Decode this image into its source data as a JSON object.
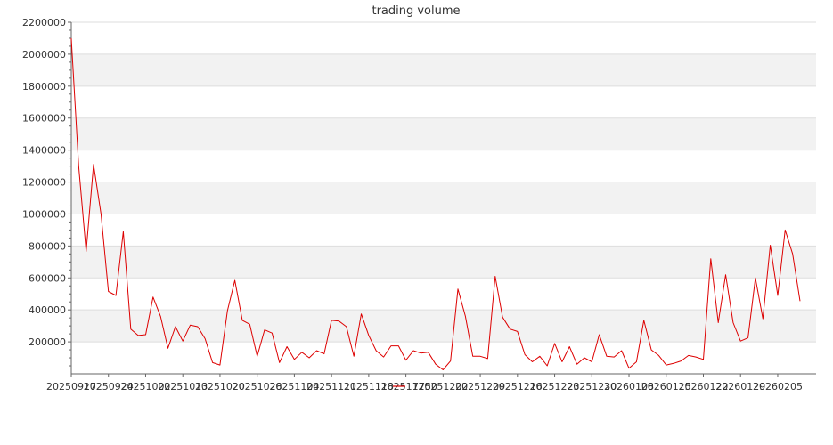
{
  "chart_data": {
    "type": "line",
    "title": "trading volume",
    "xlabel": "",
    "ylabel": "",
    "ylim": [
      0,
      2200000
    ],
    "yticks": [
      200000,
      400000,
      600000,
      800000,
      1000000,
      1200000,
      1400000,
      1600000,
      1800000,
      2000000,
      2200000
    ],
    "ytick_labels": [
      "200000",
      "400000",
      "600000",
      "800000",
      "1000000",
      "1200000",
      "1400000",
      "1600000",
      "1800000",
      "2000000",
      "2200000"
    ],
    "xtick_labels": [
      "20250917",
      "20250924",
      "20251002",
      "20251013",
      "20251020",
      "20251028",
      "20251104",
      "20251111",
      "20251118",
      "20251125",
      "20251202",
      "20251209",
      "20251216",
      "20251223",
      "20251230",
      "20260108",
      "20260115",
      "20260122",
      "20260129",
      "20260205"
    ],
    "grid": "horizontal alternating bands",
    "legend": {
      "placement": "bottom-center",
      "label": "7750"
    },
    "colors": {
      "line": "#dd0000",
      "band": "#f2f2f2",
      "grid": "#dddddd",
      "axis": "#666666"
    },
    "series": [
      {
        "name": "7750",
        "values": [
          2100000,
          1300000,
          765000,
          1310000,
          1000000,
          515000,
          490000,
          890000,
          280000,
          240000,
          245000,
          480000,
          360000,
          160000,
          295000,
          205000,
          305000,
          295000,
          220000,
          70000,
          55000,
          395000,
          585000,
          335000,
          310000,
          110000,
          275000,
          255000,
          70000,
          170000,
          90000,
          135000,
          100000,
          145000,
          125000,
          335000,
          330000,
          295000,
          110000,
          375000,
          240000,
          145000,
          105000,
          175000,
          175000,
          85000,
          145000,
          130000,
          135000,
          60000,
          25000,
          80000,
          530000,
          360000,
          110000,
          110000,
          95000,
          610000,
          355000,
          280000,
          265000,
          120000,
          75000,
          110000,
          50000,
          190000,
          75000,
          170000,
          60000,
          100000,
          75000,
          245000,
          110000,
          105000,
          145000,
          35000,
          75000,
          335000,
          150000,
          115000,
          55000,
          65000,
          80000,
          115000,
          105000,
          90000,
          720000,
          320000,
          620000,
          320000,
          205000,
          225000,
          600000,
          345000,
          805000,
          490000,
          900000,
          750000,
          455000
        ]
      }
    ]
  }
}
